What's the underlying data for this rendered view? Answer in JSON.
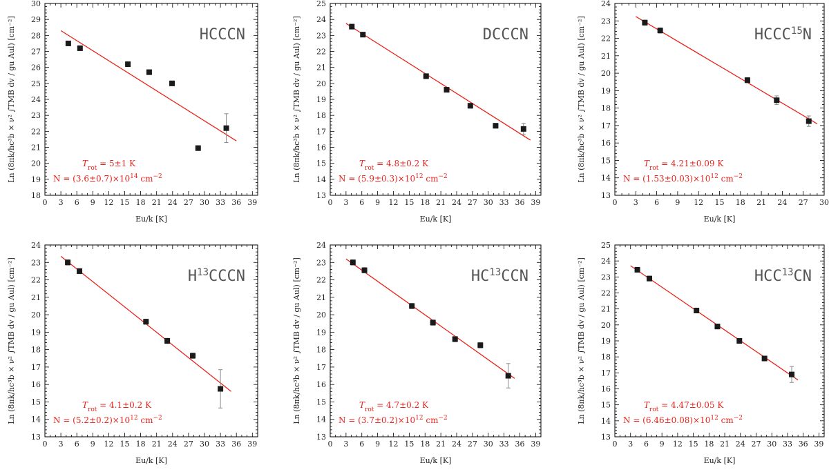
{
  "colors": {
    "fit": "#e8231c",
    "point": "#1a1a1a",
    "errorbar": "#888888",
    "frame": "#000000"
  },
  "chart_data": [
    {
      "type": "scatter",
      "molecule": {
        "main": "HCCCN",
        "pre": "",
        "sup": "",
        "post": ""
      },
      "xlabel": "Eu/k [K]",
      "ylabel": "Ln (8πk/hc³b × ν² ∫TMB dv / gu Aul) [cm⁻²]",
      "xlim": [
        0,
        40
      ],
      "ylim": [
        18,
        30
      ],
      "xticks": [
        0,
        3,
        6,
        9,
        12,
        15,
        18,
        21,
        24,
        27,
        30,
        33,
        36,
        39
      ],
      "yticks": [
        18,
        19,
        20,
        21,
        22,
        23,
        24,
        25,
        26,
        27,
        28,
        29,
        30
      ],
      "points": [
        {
          "x": 4.4,
          "y": 27.5,
          "err": 0.15
        },
        {
          "x": 6.6,
          "y": 27.2,
          "err": 0.15
        },
        {
          "x": 15.6,
          "y": 26.2,
          "err": 0.15
        },
        {
          "x": 19.6,
          "y": 25.7,
          "err": 0.15
        },
        {
          "x": 23.9,
          "y": 25.0,
          "err": 0.15
        },
        {
          "x": 28.8,
          "y": 20.95,
          "err": 0.15
        },
        {
          "x": 34.1,
          "y": 22.2,
          "err": 0.9
        }
      ],
      "fit_line": {
        "x": [
          3,
          36
        ],
        "y": [
          28.3,
          21.4
        ]
      },
      "trot_label": "T",
      "trot_sub": "rot",
      "trot_value": " = 5±1 K",
      "n_label": "N = (3.6±0.7)×10",
      "n_exp": "14",
      "n_unit": " cm",
      "n_unit_exp": "−2"
    },
    {
      "type": "scatter",
      "molecule": {
        "main": "DCCCN",
        "pre": "",
        "sup": "",
        "post": ""
      },
      "xlabel": "Eu/k [K]",
      "ylabel": "Ln (8πk/hc³b × ν² ∫TMB dv / gu Aul) [cm⁻²]",
      "xlim": [
        0,
        40
      ],
      "ylim": [
        13,
        25
      ],
      "xticks": [
        0,
        3,
        6,
        9,
        12,
        15,
        18,
        21,
        24,
        27,
        30,
        33,
        36,
        39
      ],
      "yticks": [
        13,
        14,
        15,
        16,
        17,
        18,
        19,
        20,
        21,
        22,
        23,
        24,
        25
      ],
      "points": [
        {
          "x": 4.1,
          "y": 23.55,
          "err": 0.15
        },
        {
          "x": 6.2,
          "y": 23.05,
          "err": 0.15
        },
        {
          "x": 18.2,
          "y": 20.45,
          "err": 0.15
        },
        {
          "x": 22.1,
          "y": 19.6,
          "err": 0.15
        },
        {
          "x": 26.6,
          "y": 18.6,
          "err": 0.15
        },
        {
          "x": 31.4,
          "y": 17.35,
          "err": 0.15
        },
        {
          "x": 36.7,
          "y": 17.15,
          "err": 0.35
        }
      ],
      "fit_line": {
        "x": [
          3,
          38
        ],
        "y": [
          23.75,
          16.45
        ]
      },
      "trot_label": "T",
      "trot_sub": "rot",
      "trot_value": " = 4.8±0.2 K",
      "n_label": "N = (5.9±0.3)×10",
      "n_exp": "12",
      "n_unit": " cm",
      "n_unit_exp": "−2"
    },
    {
      "type": "scatter",
      "molecule": {
        "main": "HCCC",
        "pre": "",
        "sup": "15",
        "post": "N"
      },
      "xlabel": "Eu/k [K]",
      "ylabel": "Ln (8πk/hc³b × ν² ∫TMB dv / gu Aul) [cm⁻²]",
      "xlim": [
        0,
        30
      ],
      "ylim": [
        13,
        24
      ],
      "xticks": [
        0,
        3,
        6,
        9,
        12,
        15,
        18,
        21,
        24,
        27,
        30
      ],
      "yticks": [
        13,
        14,
        15,
        16,
        17,
        18,
        19,
        20,
        21,
        22,
        23,
        24
      ],
      "points": [
        {
          "x": 4.3,
          "y": 22.9,
          "err": 0.15
        },
        {
          "x": 6.5,
          "y": 22.45,
          "err": 0.15
        },
        {
          "x": 19.0,
          "y": 19.6,
          "err": 0.15
        },
        {
          "x": 23.2,
          "y": 18.45,
          "err": 0.25
        },
        {
          "x": 27.8,
          "y": 17.25,
          "err": 0.3
        }
      ],
      "fit_line": {
        "x": [
          3,
          29
        ],
        "y": [
          23.25,
          17.1
        ]
      },
      "trot_label": "T",
      "trot_sub": "rot",
      "trot_value": " = 4.21±0.09 K",
      "n_label": "N = (1.53±0.03)×10",
      "n_exp": "12",
      "n_unit": " cm",
      "n_unit_exp": "−2"
    },
    {
      "type": "scatter",
      "molecule": {
        "main": "",
        "pre": "H",
        "sup": "13",
        "post": "CCCN"
      },
      "xlabel": "Eu/k [K]",
      "ylabel": "Ln (8πk/hc³b × ν² ∫TMB dv / gu Aul) [cm⁻²]",
      "xlim": [
        0,
        40
      ],
      "ylim": [
        13,
        24
      ],
      "xticks": [
        0,
        3,
        6,
        9,
        12,
        15,
        18,
        21,
        24,
        27,
        30,
        33,
        36,
        39
      ],
      "yticks": [
        13,
        14,
        15,
        16,
        17,
        18,
        19,
        20,
        21,
        22,
        23,
        24
      ],
      "points": [
        {
          "x": 4.3,
          "y": 23.0,
          "err": 0.15
        },
        {
          "x": 6.5,
          "y": 22.5,
          "err": 0.15
        },
        {
          "x": 19.0,
          "y": 19.6,
          "err": 0.15
        },
        {
          "x": 23.0,
          "y": 18.5,
          "err": 0.15
        },
        {
          "x": 27.8,
          "y": 17.65,
          "err": 0.15
        },
        {
          "x": 33.0,
          "y": 15.75,
          "err": 1.1
        }
      ],
      "fit_line": {
        "x": [
          3,
          35
        ],
        "y": [
          23.35,
          15.6
        ]
      },
      "trot_label": "T",
      "trot_sub": "rot",
      "trot_value": " = 4.1±0.2 K",
      "n_label": "N = (5.2±0.2)×10",
      "n_exp": "12",
      "n_unit": " cm",
      "n_unit_exp": "−2"
    },
    {
      "type": "scatter",
      "molecule": {
        "main": "",
        "pre": "HC",
        "sup": "13",
        "post": "CCN"
      },
      "xlabel": "Eu/k [K]",
      "ylabel": "Ln (8πk/hc³b × ν² ∫TMB dv / gu Aul) [cm⁻²]",
      "xlim": [
        0,
        40
      ],
      "ylim": [
        13,
        24
      ],
      "xticks": [
        0,
        3,
        6,
        9,
        12,
        15,
        18,
        21,
        24,
        27,
        30,
        33,
        36,
        39
      ],
      "yticks": [
        13,
        14,
        15,
        16,
        17,
        18,
        19,
        20,
        21,
        22,
        23,
        24
      ],
      "points": [
        {
          "x": 4.3,
          "y": 23.0,
          "err": 0.15
        },
        {
          "x": 6.5,
          "y": 22.55,
          "err": 0.15
        },
        {
          "x": 15.5,
          "y": 20.5,
          "err": 0.15
        },
        {
          "x": 19.5,
          "y": 19.55,
          "err": 0.15
        },
        {
          "x": 23.7,
          "y": 18.6,
          "err": 0.15
        },
        {
          "x": 28.5,
          "y": 18.25,
          "err": 0.15
        },
        {
          "x": 33.8,
          "y": 16.5,
          "err": 0.7
        }
      ],
      "fit_line": {
        "x": [
          3,
          35
        ],
        "y": [
          23.2,
          16.35
        ]
      },
      "trot_label": "T",
      "trot_sub": "rot",
      "trot_value": " = 4.7±0.2 K",
      "n_label": "N = (3.7±0.2)×10",
      "n_exp": "12",
      "n_unit": " cm",
      "n_unit_exp": "−2"
    },
    {
      "type": "scatter",
      "molecule": {
        "main": "",
        "pre": "HCC",
        "sup": "13",
        "post": "CN"
      },
      "xlabel": "Eu/k [K]",
      "ylabel": "Ln (8πk/hc³b × ν² ∫TMB dv / gu Aul) [cm⁻²]",
      "xlim": [
        0,
        40
      ],
      "ylim": [
        13,
        25
      ],
      "xticks": [
        0,
        3,
        6,
        9,
        12,
        15,
        18,
        21,
        24,
        27,
        30,
        33,
        36,
        39
      ],
      "yticks": [
        13,
        14,
        15,
        16,
        17,
        18,
        19,
        20,
        21,
        22,
        23,
        24,
        25
      ],
      "points": [
        {
          "x": 4.3,
          "y": 23.45,
          "err": 0.15
        },
        {
          "x": 6.6,
          "y": 22.9,
          "err": 0.15
        },
        {
          "x": 15.6,
          "y": 20.9,
          "err": 0.15
        },
        {
          "x": 19.6,
          "y": 19.9,
          "err": 0.15
        },
        {
          "x": 23.8,
          "y": 19.0,
          "err": 0.15
        },
        {
          "x": 28.6,
          "y": 17.9,
          "err": 0.15
        },
        {
          "x": 33.8,
          "y": 16.9,
          "err": 0.5
        }
      ],
      "fit_line": {
        "x": [
          3,
          35
        ],
        "y": [
          23.7,
          16.55
        ]
      },
      "trot_label": "T",
      "trot_sub": "rot",
      "trot_value": " = 4.47±0.05 K",
      "n_label": "N = (6.46±0.08)×10",
      "n_exp": "12",
      "n_unit": " cm",
      "n_unit_exp": "−2"
    }
  ]
}
